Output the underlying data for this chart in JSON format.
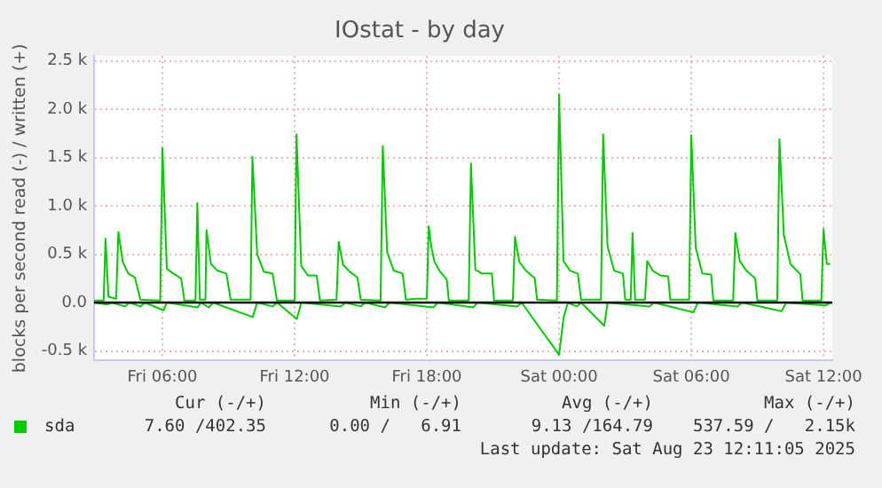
{
  "chart_data": {
    "type": "line",
    "title": "IOstat - by day",
    "ylabel": "blocks per second read (-) / written (+)",
    "xlim": [
      "2025-08-22T02:54",
      "2025-08-23T12:24"
    ],
    "xticks": [
      {
        "value": "2025-08-22T06:00",
        "label": "Fri 06:00"
      },
      {
        "value": "2025-08-22T12:00",
        "label": "Fri 12:00"
      },
      {
        "value": "2025-08-22T18:00",
        "label": "Fri 18:00"
      },
      {
        "value": "2025-08-23T00:00",
        "label": "Sat 00:00"
      },
      {
        "value": "2025-08-23T06:00",
        "label": "Sat 06:00"
      },
      {
        "value": "2025-08-23T12:00",
        "label": "Sat 12:00"
      }
    ],
    "ylim": [
      -600,
      2550
    ],
    "yticks": [
      {
        "value": -500,
        "label": "-0.5 k"
      },
      {
        "value": 0,
        "label": "0.0"
      },
      {
        "value": 500,
        "label": "0.5 k"
      },
      {
        "value": 1000,
        "label": "1.0 k"
      },
      {
        "value": 1500,
        "label": "1.5 k"
      },
      {
        "value": 2000,
        "label": "2.0 k"
      },
      {
        "value": 2500,
        "label": "2.5 k"
      }
    ],
    "grid": true,
    "legend": "bottom left",
    "marker": "none",
    "line_style": "solid",
    "ref_lines": [
      {
        "axis": "y",
        "value": 0,
        "color": "#000000"
      }
    ],
    "series": [
      {
        "name": "sda",
        "color": "#00cc00",
        "x": [
          "2025-08-22T02:54",
          "2025-08-22T03:20",
          "2025-08-22T03:25",
          "2025-08-22T03:33",
          "2025-08-22T03:54",
          "2025-08-22T04:00",
          "2025-08-22T04:12",
          "2025-08-22T04:27",
          "2025-08-22T04:45",
          "2025-08-22T05:00",
          "2025-08-22T05:54",
          "2025-08-22T06:00",
          "2025-08-22T06:12",
          "2025-08-22T06:30",
          "2025-08-22T06:51",
          "2025-08-22T07:00",
          "2025-08-22T07:30",
          "2025-08-22T07:35",
          "2025-08-22T07:42",
          "2025-08-22T07:57",
          "2025-08-22T08:00",
          "2025-08-22T08:12",
          "2025-08-22T08:30",
          "2025-08-22T08:54",
          "2025-08-22T09:06",
          "2025-08-22T10:00",
          "2025-08-22T10:05",
          "2025-08-22T10:18",
          "2025-08-22T10:36",
          "2025-08-22T11:00",
          "2025-08-22T11:12",
          "2025-08-22T12:00",
          "2025-08-22T12:05",
          "2025-08-22T12:18",
          "2025-08-22T12:36",
          "2025-08-22T13:00",
          "2025-08-22T13:09",
          "2025-08-22T13:54",
          "2025-08-22T14:00",
          "2025-08-22T14:12",
          "2025-08-22T14:30",
          "2025-08-22T14:51",
          "2025-08-22T15:00",
          "2025-08-22T15:54",
          "2025-08-22T16:00",
          "2025-08-22T16:12",
          "2025-08-22T16:30",
          "2025-08-22T16:54",
          "2025-08-22T17:03",
          "2025-08-22T17:30",
          "2025-08-22T18:00",
          "2025-08-22T18:05",
          "2025-08-22T18:12",
          "2025-08-22T18:21",
          "2025-08-22T18:36",
          "2025-08-22T18:54",
          "2025-08-22T19:00",
          "2025-08-22T19:54",
          "2025-08-22T20:00",
          "2025-08-22T20:12",
          "2025-08-22T20:30",
          "2025-08-22T20:57",
          "2025-08-22T21:03",
          "2025-08-22T21:54",
          "2025-08-22T22:00",
          "2025-08-22T22:12",
          "2025-08-22T22:30",
          "2025-08-22T22:54",
          "2025-08-22T23:00",
          "2025-08-22T23:54",
          "2025-08-23T00:00",
          "2025-08-23T00:12",
          "2025-08-23T00:30",
          "2025-08-23T00:51",
          "2025-08-23T01:00",
          "2025-08-23T01:54",
          "2025-08-23T02:00",
          "2025-08-23T02:12",
          "2025-08-23T02:30",
          "2025-08-23T02:54",
          "2025-08-23T03:00",
          "2025-08-23T03:15",
          "2025-08-23T03:20",
          "2025-08-23T03:27",
          "2025-08-23T03:54",
          "2025-08-23T04:00",
          "2025-08-23T04:15",
          "2025-08-23T04:36",
          "2025-08-23T04:57",
          "2025-08-23T05:03",
          "2025-08-23T05:54",
          "2025-08-23T06:00",
          "2025-08-23T06:12",
          "2025-08-23T06:30",
          "2025-08-23T06:54",
          "2025-08-23T07:00",
          "2025-08-23T07:54",
          "2025-08-23T08:00",
          "2025-08-23T08:12",
          "2025-08-23T08:30",
          "2025-08-23T08:54",
          "2025-08-23T09:00",
          "2025-08-23T09:54",
          "2025-08-23T10:00",
          "2025-08-23T10:12",
          "2025-08-23T10:30",
          "2025-08-23T10:57",
          "2025-08-23T11:03",
          "2025-08-23T11:54",
          "2025-08-23T12:00",
          "2025-08-23T12:09",
          "2025-08-23T12:18"
        ],
        "values": [
          20,
          20,
          660,
          60,
          40,
          730,
          420,
          300,
          260,
          30,
          20,
          1600,
          350,
          300,
          250,
          20,
          20,
          1030,
          30,
          30,
          750,
          400,
          330,
          300,
          30,
          30,
          1510,
          500,
          320,
          300,
          20,
          20,
          1740,
          380,
          280,
          280,
          20,
          30,
          630,
          390,
          320,
          260,
          30,
          20,
          1620,
          520,
          330,
          300,
          30,
          40,
          40,
          790,
          580,
          420,
          320,
          240,
          20,
          20,
          1440,
          340,
          300,
          300,
          20,
          20,
          680,
          420,
          330,
          250,
          30,
          20,
          2150,
          430,
          330,
          300,
          30,
          30,
          1740,
          580,
          330,
          300,
          30,
          30,
          720,
          30,
          30,
          430,
          330,
          280,
          270,
          30,
          30,
          1730,
          570,
          300,
          290,
          20,
          20,
          720,
          430,
          330,
          250,
          20,
          20,
          1690,
          700,
          400,
          290,
          20,
          20,
          760,
          400,
          400
        ]
      },
      {
        "color": "#00cc00",
        "x": [
          "2025-08-22T02:54",
          "2025-08-22T03:30",
          "2025-08-22T03:42",
          "2025-08-22T04:18",
          "2025-08-22T04:30",
          "2025-08-22T05:00",
          "2025-08-22T05:12",
          "2025-08-22T06:03",
          "2025-08-22T06:12",
          "2025-08-22T07:36",
          "2025-08-22T07:45",
          "2025-08-22T08:06",
          "2025-08-22T08:18",
          "2025-08-22T10:06",
          "2025-08-22T10:18",
          "2025-08-22T11:00",
          "2025-08-22T11:12",
          "2025-08-22T12:06",
          "2025-08-22T12:18",
          "2025-08-22T14:06",
          "2025-08-22T14:18",
          "2025-08-22T15:00",
          "2025-08-22T15:12",
          "2025-08-22T16:06",
          "2025-08-22T16:18",
          "2025-08-22T18:18",
          "2025-08-22T18:30",
          "2025-08-22T20:06",
          "2025-08-22T20:18",
          "2025-08-22T22:06",
          "2025-08-22T22:18",
          "2025-08-23T00:00",
          "2025-08-23T00:12",
          "2025-08-23T00:24",
          "2025-08-23T00:48",
          "2025-08-23T01:00",
          "2025-08-23T02:03",
          "2025-08-23T02:12",
          "2025-08-23T04:06",
          "2025-08-23T04:18",
          "2025-08-23T06:06",
          "2025-08-23T06:18",
          "2025-08-23T08:06",
          "2025-08-23T08:18",
          "2025-08-23T10:06",
          "2025-08-23T10:18",
          "2025-08-23T12:06",
          "2025-08-23T12:18"
        ],
        "values": [
          0,
          -20,
          0,
          -40,
          0,
          -40,
          0,
          -80,
          0,
          -50,
          0,
          -50,
          0,
          -150,
          0,
          -40,
          0,
          -170,
          0,
          -40,
          0,
          -40,
          0,
          -50,
          0,
          -50,
          0,
          -50,
          0,
          -40,
          0,
          -540,
          -160,
          0,
          -40,
          0,
          -240,
          0,
          -40,
          0,
          -100,
          0,
          -40,
          0,
          -90,
          0,
          -30,
          0
        ]
      }
    ],
    "annotations": [
      "Cur (-/+)",
      "Min (-/+)",
      "Avg (-/+)",
      "Max (-/+)",
      "7.60 /402.35",
      "0.00 /   6.91",
      "9.13 /164.79",
      "537.59 /   2.15k",
      "Last update: Sat Aug 23 12:11:05 2025"
    ]
  }
}
